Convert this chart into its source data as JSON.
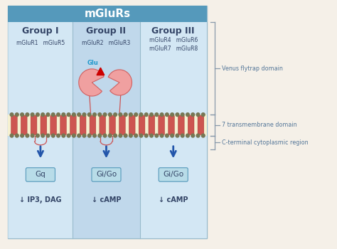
{
  "background_color": "#f5f0e8",
  "main_box_color": "#cce0f0",
  "header_bg_color": "#5599bb",
  "header_text": "mGluRs",
  "header_text_color": "#ffffff",
  "group_dark_bg": "#b8d4e8",
  "group_light_bg": "#d8edf8",
  "groups": [
    "Group I",
    "Group II",
    "Group III"
  ],
  "group_subtitles": [
    "mGluR1   mGluR5",
    "mGluR2   mGluR3",
    "mGluR4   mGluR6\nmGluR7   mGluR8"
  ],
  "g_proteins": [
    "Gq",
    "Gi/Go",
    "Gi/Go"
  ],
  "downstream": [
    "↓ IP3, DAG",
    "↓ cAMP",
    "↓ cAMP"
  ],
  "side_labels": [
    "Venus flytrap domain",
    "7 transmembrane domain",
    "C-terminal cytoplasmic region"
  ],
  "membrane_color": "#f5f0d0",
  "membrane_dot_color": "#777755",
  "helix_color": "#c84040",
  "helix_light": "#e06060",
  "vftd_color": "#f0a0a0",
  "vftd_edge_color": "#d06060",
  "arrow_color": "#2255aa",
  "glu_color": "#cc0000",
  "glu_label_color": "#2299cc",
  "gprotein_box_color": "#b8dce8",
  "gprotein_border_color": "#5599bb",
  "text_color": "#334466",
  "side_text_color": "#557799",
  "bracket_color": "#8899aa",
  "loop_color": "#cc5555",
  "divider_color": "#99bbcc"
}
